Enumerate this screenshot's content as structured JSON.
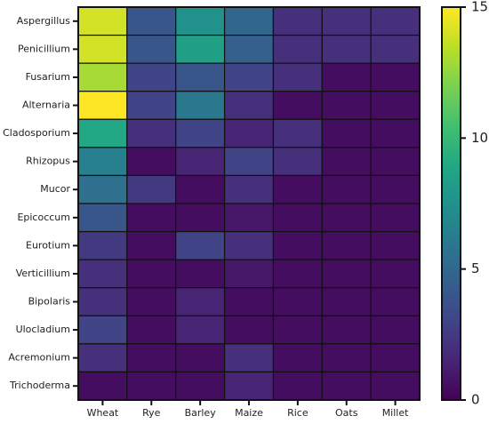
{
  "chart_data": {
    "type": "heatmap",
    "x_categories": [
      "Wheat",
      "Rye",
      "Barley",
      "Maize",
      "Rice",
      "Oats",
      "Millet"
    ],
    "y_categories": [
      "Aspergillus",
      "Penicillium",
      "Fusarium",
      "Alternaria",
      "Cladosporium",
      "Rhizopus",
      "Mucor",
      "Epicoccum",
      "Eurotium",
      "Verticillium",
      "Bipolaris",
      "Ulocladium",
      "Acremonium",
      "Trichoderma"
    ],
    "values": [
      [
        14,
        4,
        7.5,
        5,
        2,
        2,
        2
      ],
      [
        14,
        4,
        8.5,
        4.5,
        2,
        2,
        2
      ],
      [
        13,
        3,
        4,
        3,
        2,
        0.5,
        0.5
      ],
      [
        15,
        3,
        6,
        2,
        0.5,
        0.5,
        0.5
      ],
      [
        9,
        2,
        3,
        1.5,
        2,
        0.5,
        0.5
      ],
      [
        6.5,
        0.5,
        1.5,
        3,
        2,
        0.5,
        0.5
      ],
      [
        5.5,
        2.5,
        0.5,
        2,
        0.5,
        0.5,
        0.5
      ],
      [
        4,
        0.5,
        0.5,
        1,
        0.5,
        0.5,
        0.5
      ],
      [
        2.5,
        0.5,
        3,
        2,
        0.5,
        0.5,
        0.5
      ],
      [
        2,
        0.5,
        0.5,
        1,
        0.5,
        0.5,
        0.5
      ],
      [
        2,
        0.5,
        1.5,
        0.5,
        0.5,
        0.5,
        0.5
      ],
      [
        3,
        0.5,
        1.5,
        0.5,
        0.5,
        0.5,
        0.5
      ],
      [
        2,
        0.5,
        0.5,
        2,
        0.5,
        0.5,
        0.5
      ],
      [
        0.5,
        0.5,
        0.5,
        1.5,
        0.5,
        0.5,
        0.5
      ]
    ],
    "zlim": [
      0,
      15
    ],
    "zticks": [
      0,
      5,
      10,
      15
    ],
    "colormap": "viridis"
  }
}
